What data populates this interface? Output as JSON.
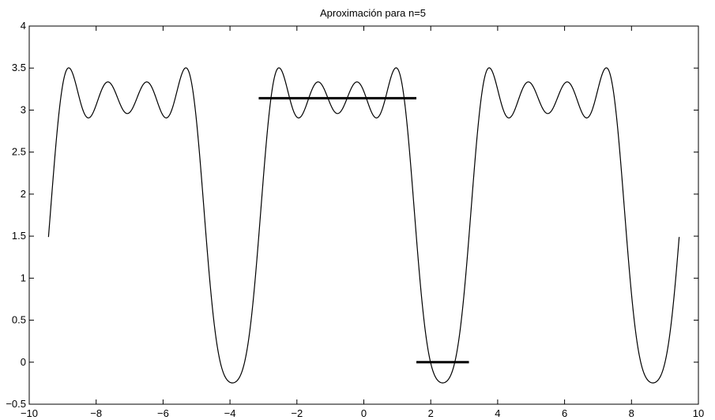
{
  "chart_data": {
    "type": "line",
    "title": "Aproximación para n=5",
    "xlabel": "",
    "ylabel": "",
    "xlim": [
      -10,
      10
    ],
    "ylim": [
      -0.5,
      4
    ],
    "x_ticks": [
      -10,
      -8,
      -6,
      -4,
      -2,
      0,
      2,
      4,
      6,
      8,
      10
    ],
    "x_tick_labels": [
      "−10",
      "−8",
      "−6",
      "−4",
      "−2",
      "0",
      "2",
      "4",
      "6",
      "8",
      "10"
    ],
    "y_ticks": [
      -0.5,
      0,
      0.5,
      1,
      1.5,
      2,
      2.5,
      3,
      3.5,
      4
    ],
    "y_tick_labels": [
      "−0.5",
      "0",
      "0.5",
      "1",
      "1.5",
      "2",
      "2.5",
      "3",
      "3.5",
      "4"
    ],
    "grid": false,
    "series": [
      {
        "kind": "fourier-approximation",
        "color": "#000000",
        "domain": [
          -9.42477,
          9.42477
        ],
        "function": "pi/2 + (4/pi) * sum_{k=0..4} sin((2k+1)x)/(2k+1) + (pi/4) * (1 + cos(x))^2 ... (periodic with period 2pi)",
        "n": 5
      },
      {
        "kind": "segment",
        "color": "#000000",
        "x": [
          -3.14159,
          1.5708
        ],
        "y": [
          3.14159,
          3.14159
        ]
      },
      {
        "kind": "segment",
        "color": "#000000",
        "x": [
          1.5708,
          3.14159
        ],
        "y": [
          0,
          0
        ]
      }
    ]
  }
}
